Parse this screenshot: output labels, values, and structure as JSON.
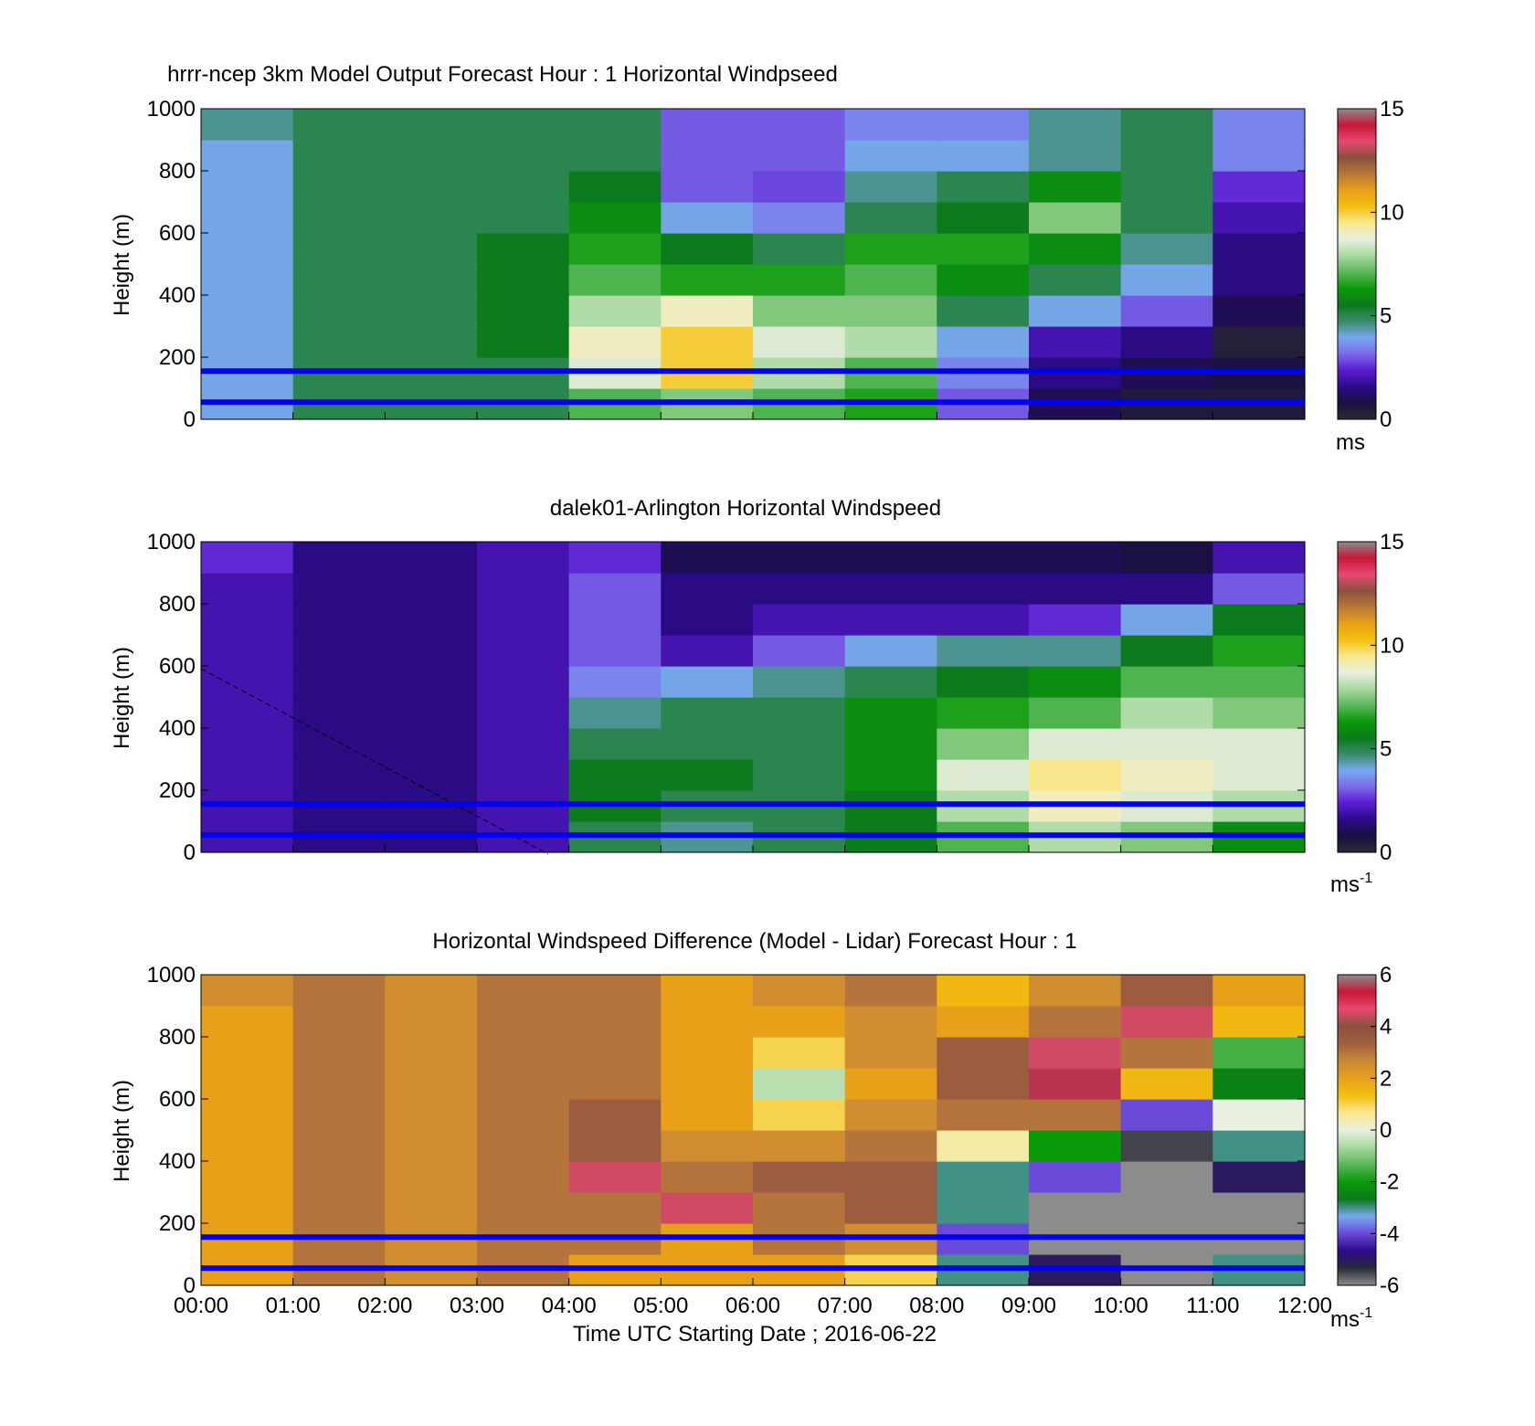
{
  "colors": {
    "speed_scale": [
      "#2a2a36",
      "#1a1040",
      "#2c0a8a",
      "#5a1cd0",
      "#7a6ae8",
      "#78a8f0",
      "#3a8a6a",
      "#0a7a1a",
      "#0a9a0a",
      "#5ab85a",
      "#a8d8a0",
      "#eaf0e0",
      "#f8e890",
      "#f4c010",
      "#e8a018",
      "#b87838",
      "#8a5040",
      "#e84870",
      "#c81838",
      "#8c8c8c"
    ],
    "diff_scale": [
      "#8c8c8c",
      "#2a2a36",
      "#2c0a8a",
      "#6a4ad8",
      "#78a8f0",
      "#0a7a1a",
      "#0a9a0a",
      "#5ab85a",
      "#a8d8a0",
      "#eaf0e0",
      "#f8e890",
      "#f4c010",
      "#e8a018",
      "#c88838",
      "#a06040",
      "#8a5040",
      "#e84870",
      "#c81838",
      "#8c8c8c"
    ],
    "guide_line": "#0000ee"
  },
  "chart_data": [
    {
      "type": "heatmap",
      "title": "hrrr-ncep 3km Model Output   Forecast Hour : 1 Horizontal Windpseed",
      "xlabel": "",
      "ylabel": "Height (m)",
      "ylim": [
        0,
        1000
      ],
      "yticks": [
        "0",
        "200",
        "400",
        "600",
        "800",
        "1000"
      ],
      "x": [
        "00:00",
        "01:00",
        "02:00",
        "03:00",
        "04:00",
        "05:00",
        "06:00",
        "07:00",
        "08:00",
        "09:00",
        "10:00",
        "11:00"
      ],
      "heights": [
        0,
        100,
        200,
        300,
        400,
        500,
        600,
        700,
        800,
        900,
        1000
      ],
      "values": [
        [
          4.0,
          5.0,
          5.0,
          5.0,
          7.0,
          7.5,
          7.0,
          6.5,
          3.0,
          1.0,
          0.5,
          0.5
        ],
        [
          4.0,
          5.0,
          5.0,
          5.0,
          8.5,
          10.0,
          8.0,
          7.0,
          3.5,
          1.5,
          1.0,
          0.8
        ],
        [
          4.0,
          5.0,
          5.0,
          5.5,
          9.0,
          10.0,
          8.5,
          8.0,
          4.0,
          2.0,
          1.5,
          0.3
        ],
        [
          4.0,
          5.0,
          5.0,
          5.5,
          8.0,
          9.0,
          7.5,
          7.5,
          5.0,
          4.0,
          3.0,
          1.0
        ],
        [
          4.0,
          5.0,
          5.0,
          5.5,
          7.0,
          6.5,
          6.5,
          7.0,
          6.0,
          5.0,
          4.0,
          1.5
        ],
        [
          4.0,
          5.0,
          5.0,
          5.5,
          6.5,
          5.5,
          5.0,
          6.5,
          6.5,
          6.0,
          4.5,
          1.5
        ],
        [
          4.0,
          5.0,
          5.0,
          5.0,
          6.0,
          4.0,
          3.5,
          5.0,
          5.5,
          7.5,
          5.0,
          2.0
        ],
        [
          4.0,
          5.0,
          5.0,
          5.0,
          5.5,
          3.0,
          2.8,
          4.5,
          5.0,
          6.0,
          5.0,
          2.5
        ],
        [
          4.0,
          5.0,
          5.0,
          5.0,
          5.0,
          3.0,
          3.0,
          4.0,
          4.0,
          4.5,
          5.0,
          3.5
        ],
        [
          4.5,
          5.0,
          5.0,
          5.0,
          5.0,
          3.0,
          3.0,
          3.5,
          3.5,
          4.5,
          5.0,
          3.5
        ]
      ],
      "zlim": [
        0,
        15
      ],
      "colorbar_ticks": [
        "0",
        "5",
        "10",
        "15"
      ],
      "colorbar_unit": "ms",
      "guide_lines_y": [
        155,
        55
      ]
    },
    {
      "type": "heatmap",
      "title": "dalek01-Arlington  Horizontal Windspeed",
      "xlabel": "",
      "ylabel": "Height (m)",
      "ylim": [
        0,
        1000
      ],
      "yticks": [
        "0",
        "200",
        "400",
        "600",
        "800",
        "1000"
      ],
      "x": [
        "00:00",
        "01:00",
        "02:00",
        "03:00",
        "04:00",
        "05:00",
        "06:00",
        "07:00",
        "08:00",
        "09:00",
        "10:00",
        "11:00"
      ],
      "heights": [
        0,
        100,
        200,
        300,
        400,
        500,
        600,
        700,
        800,
        900,
        1000
      ],
      "values": [
        [
          2.0,
          1.5,
          1.5,
          2.0,
          5.0,
          4.5,
          5.0,
          5.5,
          7.0,
          8.0,
          7.5,
          6.0
        ],
        [
          2.0,
          1.5,
          1.5,
          2.0,
          5.5,
          5.0,
          5.0,
          5.5,
          8.0,
          9.0,
          8.5,
          8.0
        ],
        [
          2.0,
          1.5,
          1.5,
          2.0,
          5.5,
          5.5,
          5.0,
          6.0,
          8.5,
          9.5,
          9.0,
          8.5
        ],
        [
          2.0,
          1.5,
          1.5,
          2.0,
          5.0,
          5.0,
          5.0,
          6.0,
          7.5,
          8.5,
          8.5,
          8.5
        ],
        [
          2.0,
          1.5,
          1.5,
          2.0,
          4.5,
          5.0,
          5.0,
          6.0,
          6.5,
          7.0,
          8.0,
          7.5
        ],
        [
          2.0,
          1.5,
          1.5,
          2.0,
          3.5,
          4.0,
          4.5,
          5.0,
          5.5,
          6.0,
          7.0,
          7.0
        ],
        [
          2.0,
          1.5,
          1.5,
          2.0,
          3.0,
          2.0,
          3.0,
          4.0,
          4.5,
          4.5,
          5.5,
          6.5
        ],
        [
          2.0,
          1.5,
          1.5,
          2.0,
          3.0,
          1.5,
          2.0,
          2.0,
          2.0,
          2.5,
          4.0,
          5.5
        ],
        [
          2.0,
          1.5,
          1.5,
          2.0,
          3.0,
          1.5,
          1.5,
          1.5,
          1.5,
          1.5,
          1.5,
          3.0
        ],
        [
          2.5,
          1.5,
          1.5,
          2.0,
          2.5,
          1.0,
          1.0,
          1.0,
          1.0,
          1.0,
          0.8,
          2.0
        ]
      ],
      "zlim": [
        0,
        15
      ],
      "colorbar_ticks": [
        "0",
        "5",
        "10",
        "15"
      ],
      "colorbar_unit": "ms",
      "colorbar_unit_exp": "-1",
      "guide_lines_y": [
        155,
        55
      ]
    },
    {
      "type": "heatmap",
      "title": "Horizontal Windspeed Difference (Model - Lidar) Forecast Hour : 1",
      "xlabel": "Time UTC  Starting Date ; 2016-06-22",
      "ylabel": "Height (m)",
      "ylim": [
        0,
        1000
      ],
      "yticks": [
        "0",
        "200",
        "400",
        "600",
        "800",
        "1000"
      ],
      "xticks": [
        "00:00",
        "01:00",
        "02:00",
        "03:00",
        "04:00",
        "05:00",
        "06:00",
        "07:00",
        "08:00",
        "09:00",
        "10:00",
        "11:00",
        "12:00"
      ],
      "x": [
        "00:00",
        "01:00",
        "02:00",
        "03:00",
        "04:00",
        "05:00",
        "06:00",
        "07:00",
        "08:00",
        "09:00",
        "10:00",
        "11:00"
      ],
      "heights": [
        0,
        100,
        200,
        300,
        400,
        500,
        600,
        700,
        800,
        900,
        1000
      ],
      "values": [
        [
          2.0,
          3.0,
          2.5,
          3.0,
          2.0,
          2.0,
          2.0,
          1.0,
          -3.0,
          -5.0,
          -6.5,
          -3.0
        ],
        [
          2.0,
          3.0,
          2.5,
          3.0,
          3.0,
          2.0,
          3.0,
          2.5,
          -4.0,
          -6.5,
          -6.5,
          -6.5
        ],
        [
          2.0,
          3.0,
          2.5,
          3.0,
          3.0,
          4.5,
          3.0,
          3.5,
          -3.0,
          -6.5,
          -6.5,
          -6.5
        ],
        [
          2.0,
          3.0,
          2.5,
          3.0,
          4.5,
          3.0,
          3.5,
          3.5,
          -3.0,
          -4.0,
          -6.0,
          -5.0
        ],
        [
          2.0,
          3.0,
          2.5,
          3.0,
          3.5,
          2.5,
          2.5,
          3.0,
          0.5,
          -2.0,
          -5.5,
          -3.0
        ],
        [
          2.0,
          3.0,
          2.5,
          3.0,
          3.5,
          2.0,
          1.0,
          2.5,
          3.0,
          3.0,
          -4.0,
          0.0
        ],
        [
          2.0,
          3.0,
          2.5,
          3.0,
          3.0,
          2.0,
          -0.5,
          2.0,
          3.5,
          5.5,
          1.5,
          -2.5
        ],
        [
          2.0,
          3.0,
          2.5,
          3.0,
          3.0,
          2.0,
          1.0,
          2.5,
          3.5,
          4.5,
          3.0,
          -1.5
        ],
        [
          2.0,
          3.0,
          2.5,
          3.0,
          3.0,
          2.0,
          2.0,
          2.5,
          2.0,
          3.0,
          4.5,
          1.5
        ],
        [
          2.5,
          3.0,
          2.5,
          3.0,
          3.0,
          2.0,
          2.5,
          3.0,
          1.5,
          2.5,
          3.5,
          2.0
        ]
      ],
      "zlim": [
        -6,
        6
      ],
      "colorbar_ticks": [
        "-6",
        "-4",
        "-2",
        "0",
        "2",
        "4",
        "6"
      ],
      "colorbar_unit": "ms",
      "colorbar_unit_exp": "-1",
      "guide_lines_y": [
        155,
        55
      ]
    }
  ]
}
